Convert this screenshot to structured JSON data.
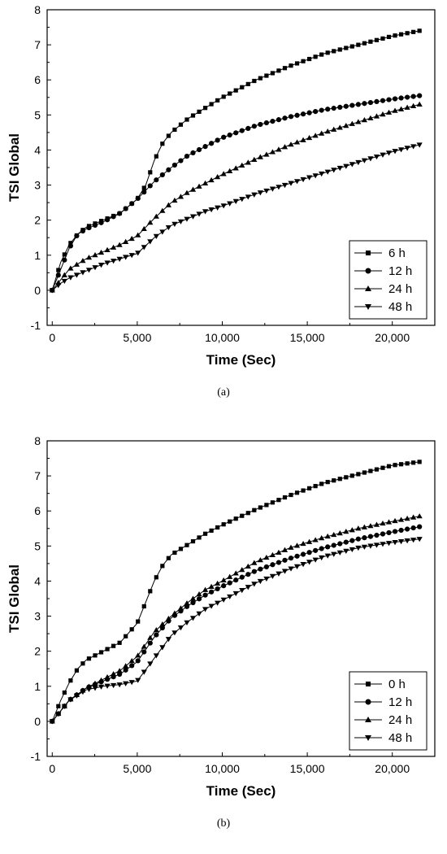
{
  "chart_data": [
    {
      "type": "line",
      "caption": "(a)",
      "xlabel": "Time (Sec)",
      "ylabel": "TSI Global",
      "xlim": [
        -300,
        22500
      ],
      "ylim": [
        -1,
        8
      ],
      "x_ticks": [
        "0",
        "5,000",
        "10,000",
        "15,000",
        "20,000"
      ],
      "y_ticks": [
        "-1",
        "0",
        "1",
        "2",
        "3",
        "4",
        "5",
        "6",
        "7",
        "8"
      ],
      "legend_position": "bottom-right",
      "markers": "square, circle, triangle-up, triangle-down",
      "series": [
        {
          "name": "6 h",
          "marker": "square",
          "x": [
            0,
            500,
            1000,
            1500,
            2000,
            3000,
            4000,
            5000,
            5500,
            6000,
            6500,
            7000,
            7500,
            8000,
            9000,
            10000,
            12000,
            14000,
            16000,
            18000,
            20000,
            21600
          ],
          "y": [
            0,
            0.8,
            1.3,
            1.6,
            1.8,
            2.0,
            2.2,
            2.6,
            3.0,
            3.7,
            4.2,
            4.5,
            4.7,
            4.9,
            5.2,
            5.5,
            6.0,
            6.4,
            6.75,
            7.0,
            7.25,
            7.4
          ]
        },
        {
          "name": "12 h",
          "marker": "circle",
          "x": [
            0,
            500,
            1000,
            1500,
            2000,
            3000,
            4000,
            5000,
            6000,
            7000,
            8000,
            9000,
            10000,
            12000,
            14000,
            16000,
            18000,
            20000,
            21600
          ],
          "y": [
            0,
            0.6,
            1.2,
            1.6,
            1.75,
            1.95,
            2.2,
            2.6,
            3.1,
            3.5,
            3.85,
            4.1,
            4.35,
            4.7,
            4.95,
            5.15,
            5.3,
            5.45,
            5.55
          ]
        },
        {
          "name": "24 h",
          "marker": "triangle-up",
          "x": [
            0,
            500,
            1000,
            2000,
            3000,
            4000,
            5000,
            6000,
            7000,
            8000,
            9000,
            10000,
            12000,
            14000,
            16000,
            18000,
            20000,
            21600
          ],
          "y": [
            0,
            0.3,
            0.6,
            0.9,
            1.1,
            1.3,
            1.55,
            2.05,
            2.5,
            2.8,
            3.05,
            3.3,
            3.75,
            4.15,
            4.5,
            4.8,
            5.1,
            5.3
          ]
        },
        {
          "name": "48 h",
          "marker": "triangle-down",
          "x": [
            0,
            500,
            1000,
            2000,
            3000,
            4000,
            5000,
            6000,
            7000,
            8000,
            9000,
            10000,
            12000,
            14000,
            16000,
            18000,
            20000,
            21600
          ],
          "y": [
            0,
            0.2,
            0.35,
            0.55,
            0.75,
            0.9,
            1.05,
            1.5,
            1.85,
            2.05,
            2.25,
            2.4,
            2.75,
            3.05,
            3.35,
            3.65,
            3.95,
            4.15
          ]
        }
      ]
    },
    {
      "type": "line",
      "caption": "(b)",
      "xlabel": "Time (Sec)",
      "ylabel": "TSI Global",
      "xlim": [
        -300,
        22500
      ],
      "ylim": [
        -1,
        8
      ],
      "x_ticks": [
        "0",
        "5,000",
        "10,000",
        "15,000",
        "20,000"
      ],
      "y_ticks": [
        "-1",
        "0",
        "1",
        "2",
        "3",
        "4",
        "5",
        "6",
        "7",
        "8"
      ],
      "legend_position": "bottom-right",
      "markers": "square, circle, triangle-up, triangle-down",
      "series": [
        {
          "name": "0 h",
          "marker": "square",
          "x": [
            0,
            500,
            1000,
            1500,
            2000,
            3000,
            4000,
            5000,
            5500,
            6000,
            6500,
            7000,
            7500,
            8000,
            9000,
            10000,
            12000,
            14000,
            16000,
            18000,
            20000,
            21600
          ],
          "y": [
            0,
            0.6,
            1.1,
            1.5,
            1.75,
            2.0,
            2.25,
            2.8,
            3.4,
            4.0,
            4.45,
            4.75,
            4.9,
            5.05,
            5.35,
            5.6,
            6.05,
            6.45,
            6.8,
            7.05,
            7.3,
            7.4
          ]
        },
        {
          "name": "12 h",
          "marker": "circle",
          "x": [
            0,
            500,
            1000,
            2000,
            3000,
            4000,
            5000,
            6000,
            7000,
            8000,
            9000,
            10000,
            12000,
            14000,
            16000,
            18000,
            20000,
            21600
          ],
          "y": [
            0,
            0.3,
            0.6,
            0.95,
            1.15,
            1.35,
            1.7,
            2.4,
            2.95,
            3.3,
            3.6,
            3.85,
            4.3,
            4.65,
            4.95,
            5.2,
            5.4,
            5.55
          ]
        },
        {
          "name": "24 h",
          "marker": "triangle-up",
          "x": [
            0,
            500,
            1000,
            2000,
            3000,
            4000,
            5000,
            6000,
            7000,
            8000,
            9000,
            10000,
            12000,
            14000,
            16000,
            18000,
            20000,
            21600
          ],
          "y": [
            0,
            0.3,
            0.6,
            0.95,
            1.2,
            1.45,
            1.85,
            2.55,
            3.0,
            3.4,
            3.75,
            4.0,
            4.55,
            4.95,
            5.25,
            5.5,
            5.7,
            5.85
          ]
        },
        {
          "name": "48 h",
          "marker": "triangle-down",
          "x": [
            0,
            500,
            1000,
            2000,
            3000,
            4000,
            5000,
            6000,
            7000,
            8000,
            9000,
            10000,
            12000,
            14000,
            16000,
            18000,
            20000,
            21600
          ],
          "y": [
            0,
            0.3,
            0.6,
            0.9,
            1.0,
            1.05,
            1.15,
            1.8,
            2.45,
            2.85,
            3.2,
            3.45,
            3.95,
            4.35,
            4.7,
            4.95,
            5.1,
            5.2
          ]
        }
      ]
    }
  ]
}
